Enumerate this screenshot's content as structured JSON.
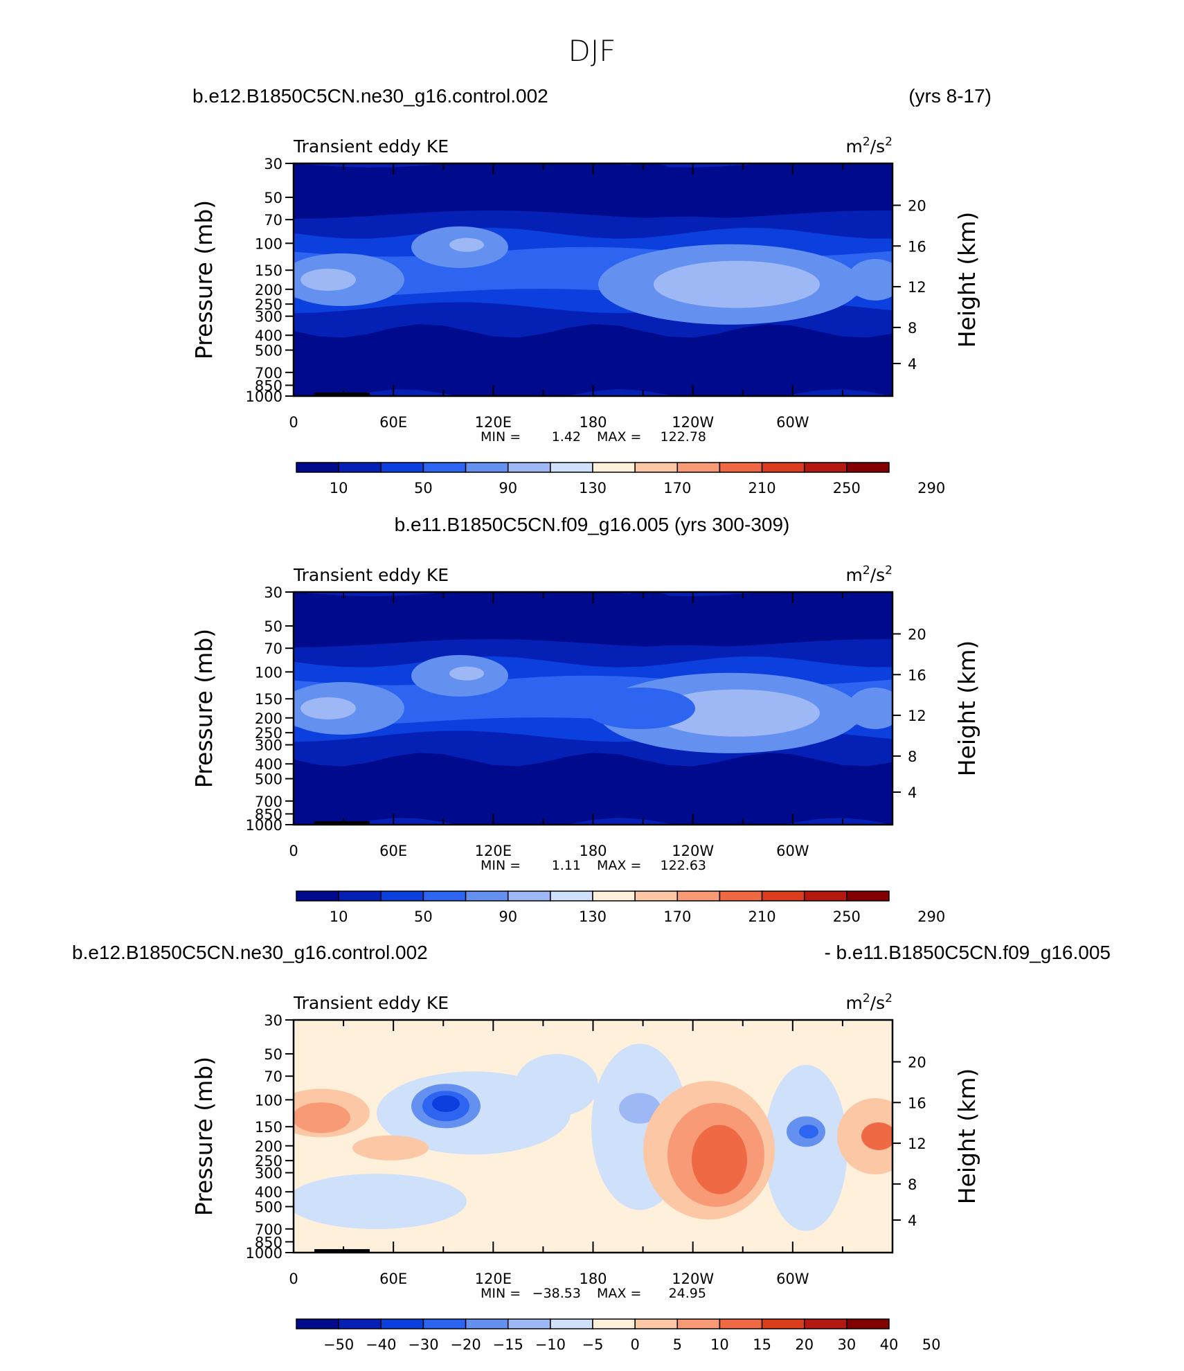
{
  "figure": {
    "title": "DJF"
  },
  "chart_data": [
    {
      "type": "contour",
      "case_title": "b.e12.B1850C5CN.ne30_g16.control.002",
      "case_title_right": "(yrs 8-17)",
      "variable": "Transient eddy KE",
      "units_base": "m",
      "units_sup": "2",
      "units_mid": "/s",
      "units_sup2": "2",
      "ylabel": "Pressure (mb)",
      "y2label": "Height (km)",
      "pressure_ticks": [
        "30",
        "50",
        "70",
        "100",
        "150",
        "200",
        "250",
        "300",
        "400",
        "500",
        "700",
        "850",
        "1000"
      ],
      "height_ticks": [
        "20",
        "16",
        "12",
        "8",
        "4"
      ],
      "longitude_ticks": [
        "0",
        "60E",
        "120E",
        "180",
        "120W",
        "60W"
      ],
      "min_label": "MIN =",
      "min_value": "1.42",
      "max_label": "MAX =",
      "max_value": "122.78",
      "colorbar_labels": [
        "10",
        "50",
        "90",
        "130",
        "170",
        "210",
        "250",
        "290"
      ],
      "colorbar_colors": [
        "#000a8c",
        "#0520b4",
        "#0b3fde",
        "#2d64f0",
        "#6491f0",
        "#9db8f5",
        "#cfe0fb",
        "#fff0dc",
        "#fcc7a4",
        "#f79a75",
        "#ef6a44",
        "#dc3c1e",
        "#b4190f",
        "#820000"
      ]
    },
    {
      "type": "contour",
      "case_title": "b.e11.B1850C5CN.f09_g16.005 (yrs 300-309)",
      "variable": "Transient eddy KE",
      "units_base": "m",
      "units_sup": "2",
      "units_mid": "/s",
      "units_sup2": "2",
      "ylabel": "Pressure (mb)",
      "y2label": "Height (km)",
      "pressure_ticks": [
        "30",
        "50",
        "70",
        "100",
        "150",
        "200",
        "250",
        "300",
        "400",
        "500",
        "700",
        "850",
        "1000"
      ],
      "height_ticks": [
        "20",
        "16",
        "12",
        "8",
        "4"
      ],
      "longitude_ticks": [
        "0",
        "60E",
        "120E",
        "180",
        "120W",
        "60W"
      ],
      "min_label": "MIN =",
      "min_value": "1.11",
      "max_label": "MAX =",
      "max_value": "122.63",
      "colorbar_labels": [
        "10",
        "50",
        "90",
        "130",
        "170",
        "210",
        "250",
        "290"
      ],
      "colorbar_colors": [
        "#000a8c",
        "#0520b4",
        "#0b3fde",
        "#2d64f0",
        "#6491f0",
        "#9db8f5",
        "#cfe0fb",
        "#fff0dc",
        "#fcc7a4",
        "#f79a75",
        "#ef6a44",
        "#dc3c1e",
        "#b4190f",
        "#820000"
      ]
    },
    {
      "type": "contour",
      "case_title": "b.e12.B1850C5CN.ne30_g16.control.002",
      "case_title_right": "- b.e11.B1850C5CN.f09_g16.005",
      "variable": "Transient eddy KE",
      "units_base": "m",
      "units_sup": "2",
      "units_mid": "/s",
      "units_sup2": "2",
      "ylabel": "Pressure (mb)",
      "y2label": "Height (km)",
      "pressure_ticks": [
        "30",
        "50",
        "70",
        "100",
        "150",
        "200",
        "250",
        "300",
        "400",
        "500",
        "700",
        "850",
        "1000"
      ],
      "height_ticks": [
        "20",
        "16",
        "12",
        "8",
        "4"
      ],
      "longitude_ticks": [
        "0",
        "60E",
        "120E",
        "180",
        "120W",
        "60W"
      ],
      "min_label": "MIN =",
      "min_value": "−38.53",
      "max_label": "MAX =",
      "max_value": "24.95",
      "colorbar_labels": [
        "−50",
        "−40",
        "−30",
        "−20",
        "−15",
        "−10",
        "−5",
        "0",
        "5",
        "10",
        "15",
        "20",
        "30",
        "40",
        "50"
      ],
      "colorbar_colors": [
        "#000a8c",
        "#0520b4",
        "#0b3fde",
        "#2d64f0",
        "#6491f0",
        "#9db8f5",
        "#cfe0fb",
        "#fff0dc",
        "#fcc7a4",
        "#f79a75",
        "#ef6a44",
        "#dc3c1e",
        "#b4190f",
        "#820000"
      ]
    }
  ]
}
